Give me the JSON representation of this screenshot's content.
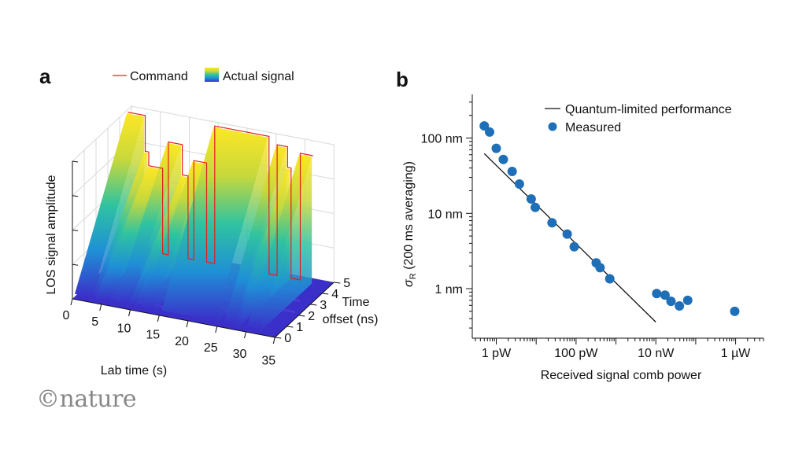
{
  "figure": {
    "panel_a_label": "a",
    "panel_b_label": "b",
    "brand": "©nature"
  },
  "chart_data": [
    {
      "type": "area",
      "panel": "a",
      "legend": {
        "placement": "top",
        "items": [
          "Command",
          "Actual signal"
        ]
      },
      "xlabel": "Lab time (s)",
      "ylabel": "Time\noffset (ns)",
      "zlabel": "LOS signal amplitude",
      "x_ticks": [
        "0",
        "5",
        "10",
        "15",
        "20",
        "25",
        "30",
        "35"
      ],
      "y_ticks": [
        "0",
        "1",
        "2",
        "3",
        "4",
        "5"
      ],
      "xlim": [
        0,
        35
      ],
      "ylim": [
        0,
        5
      ],
      "zlim": [
        0,
        1
      ],
      "colormap": [
        "#3b2fc9",
        "#1f8fd6",
        "#2fc3a0",
        "#c8d83b",
        "#fde725"
      ],
      "command_color": "#e0201c",
      "command": [
        {
          "t": 0.0,
          "level": 0.98
        },
        {
          "t": 3.0,
          "level": 0.98
        },
        {
          "t": 3.0,
          "level": 0.72
        },
        {
          "t": 3.6,
          "level": 0.72
        },
        {
          "t": 3.6,
          "level": 0.62
        },
        {
          "t": 6.0,
          "level": 0.62
        },
        {
          "t": 6.0,
          "level": 0.0
        },
        {
          "t": 7.0,
          "level": 0.0
        },
        {
          "t": 7.0,
          "level": 0.82
        },
        {
          "t": 9.4,
          "level": 0.82
        },
        {
          "t": 9.4,
          "level": 0.6
        },
        {
          "t": 10.4,
          "level": 0.6
        },
        {
          "t": 10.4,
          "level": 0.0
        },
        {
          "t": 11.4,
          "level": 0.0
        },
        {
          "t": 11.4,
          "level": 0.72
        },
        {
          "t": 13.6,
          "level": 0.72
        },
        {
          "t": 13.6,
          "level": 0.0
        },
        {
          "t": 15.0,
          "level": 0.0
        },
        {
          "t": 15.0,
          "level": 1.0
        },
        {
          "t": 24.4,
          "level": 1.0
        },
        {
          "t": 24.4,
          "level": 0.0
        },
        {
          "t": 25.8,
          "level": 0.0
        },
        {
          "t": 25.8,
          "level": 0.95
        },
        {
          "t": 27.6,
          "level": 0.95
        },
        {
          "t": 27.6,
          "level": 0.8
        },
        {
          "t": 28.2,
          "level": 0.8
        },
        {
          "t": 28.2,
          "level": 0.0
        },
        {
          "t": 29.8,
          "level": 0.0
        },
        {
          "t": 29.8,
          "level": 0.92
        },
        {
          "t": 32.0,
          "level": 0.92
        }
      ]
    },
    {
      "type": "scatter",
      "panel": "b",
      "xlabel": "Received signal comb power",
      "ylabel": "σR (200 ms averaging)",
      "log_x": true,
      "log_y": true,
      "xlim_W": [
        2.5e-13,
        5e-06
      ],
      "ylim_m": [
        2.2e-10,
        3.8e-07
      ],
      "x_ticks": [
        {
          "value": 1e-12,
          "label": "1 pW"
        },
        {
          "value": 1e-10,
          "label": "100 pW"
        },
        {
          "value": 1e-08,
          "label": "10 nW"
        },
        {
          "value": 1e-06,
          "label": "1 µW"
        }
      ],
      "y_ticks": [
        {
          "value": 1e-09,
          "label": "1 nm"
        },
        {
          "value": 1e-08,
          "label": "10 nm"
        },
        {
          "value": 1e-07,
          "label": "100 nm"
        }
      ],
      "legend": {
        "placement": "top-right"
      },
      "series": [
        {
          "name": "Quantum-limited performance",
          "kind": "line",
          "color": "#111111",
          "points": [
            {
              "x": 5e-13,
              "y": 6.2e-08
            },
            {
              "x": 1e-08,
              "y": 3.6e-10
            }
          ]
        },
        {
          "name": "Measured",
          "kind": "scatter",
          "color": "#1f6fb8",
          "points": [
            {
              "x": 5e-13,
              "y": 1.45e-07
            },
            {
              "x": 6.8e-13,
              "y": 1.2e-07
            },
            {
              "x": 1e-12,
              "y": 7.3e-08
            },
            {
              "x": 1.5e-12,
              "y": 5.2e-08
            },
            {
              "x": 2.5e-12,
              "y": 3.6e-08
            },
            {
              "x": 3.8e-12,
              "y": 2.45e-08
            },
            {
              "x": 7.5e-12,
              "y": 1.55e-08
            },
            {
              "x": 9.5e-12,
              "y": 1.2e-08
            },
            {
              "x": 2.5e-11,
              "y": 7.5e-09
            },
            {
              "x": 6e-11,
              "y": 5.3e-09
            },
            {
              "x": 9e-11,
              "y": 3.6e-09
            },
            {
              "x": 3.2e-10,
              "y": 2.2e-09
            },
            {
              "x": 4e-10,
              "y": 1.9e-09
            },
            {
              "x": 7e-10,
              "y": 1.35e-09
            },
            {
              "x": 1.05e-08,
              "y": 8.6e-10
            },
            {
              "x": 1.7e-08,
              "y": 8.2e-10
            },
            {
              "x": 2.4e-08,
              "y": 6.8e-10
            },
            {
              "x": 3.9e-08,
              "y": 5.9e-10
            },
            {
              "x": 6.3e-08,
              "y": 7e-10
            },
            {
              "x": 9.5e-07,
              "y": 5e-10
            }
          ]
        }
      ]
    }
  ]
}
